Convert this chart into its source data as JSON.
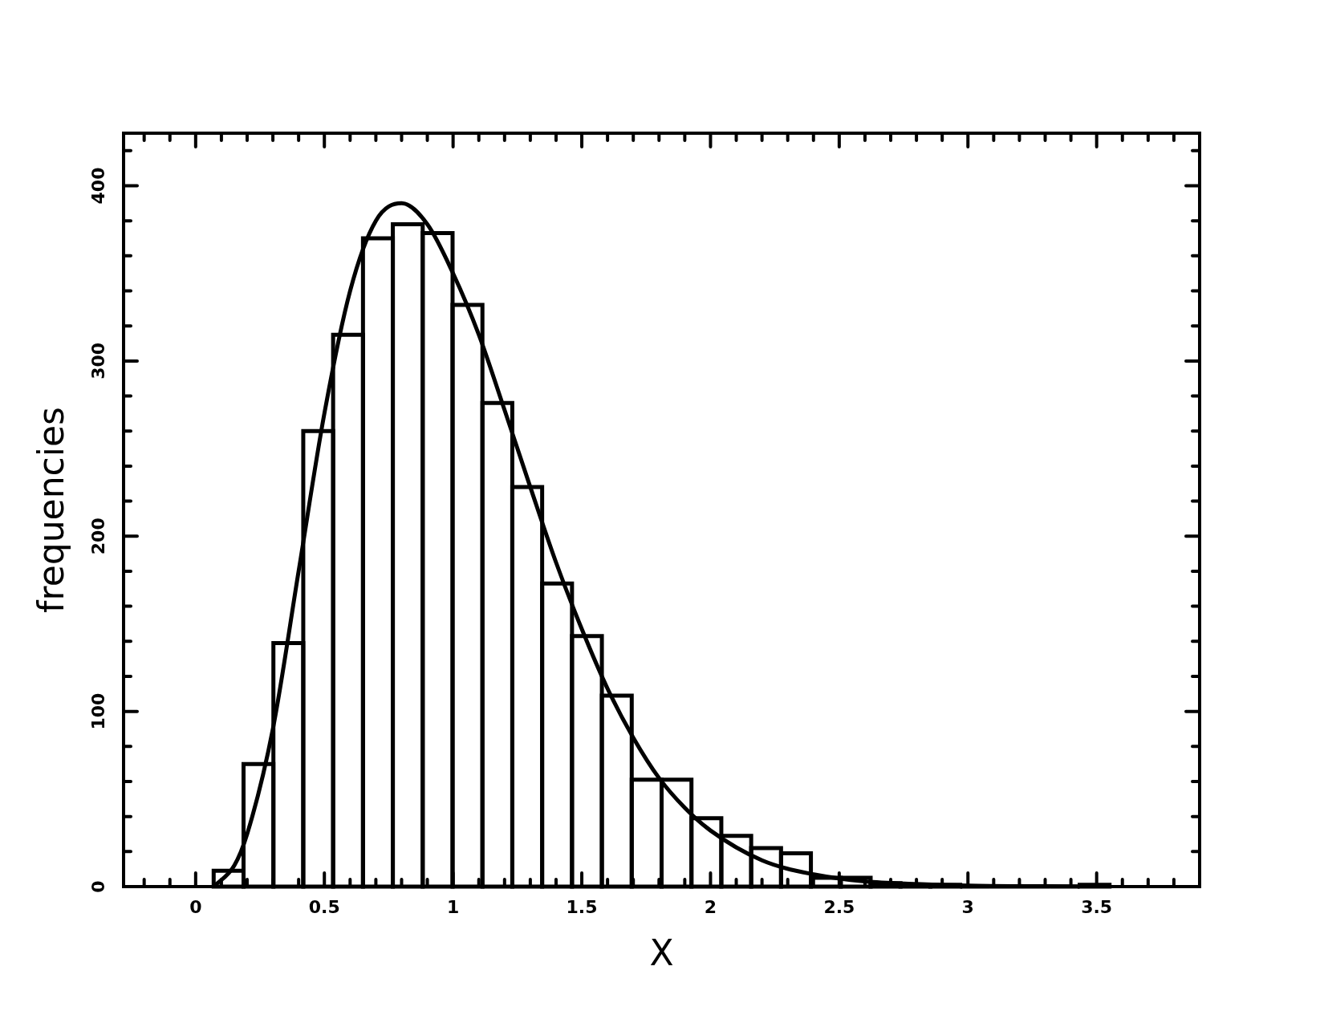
{
  "chart_data": {
    "type": "histogram",
    "xlabel": "X",
    "ylabel": "frequencies",
    "series": [
      {
        "type": "histogram",
        "color": "#000000",
        "bins": [
          0.07,
          0.186,
          0.302,
          0.418,
          0.534,
          0.65,
          0.766,
          0.882,
          0.998,
          1.114,
          1.23,
          1.346,
          1.462,
          1.578,
          1.694,
          1.81,
          1.926,
          2.042,
          2.158,
          2.274,
          2.39,
          2.506,
          2.622,
          2.738,
          2.854,
          2.97,
          3.086,
          3.202,
          3.318,
          3.434,
          3.55
        ],
        "values": [
          9,
          70,
          139,
          260,
          315,
          370,
          378,
          373,
          332,
          276,
          228,
          173,
          143,
          109,
          61,
          61,
          39,
          29,
          22,
          19,
          5,
          5,
          2,
          1,
          1,
          0,
          0,
          0,
          0,
          1
        ]
      },
      {
        "type": "line",
        "color": "#000000",
        "marker": "none",
        "line_style": "solid",
        "x": [
          0.07,
          0.15,
          0.2,
          0.3,
          0.4,
          0.5,
          0.6,
          0.7,
          0.8,
          0.9,
          1.0,
          1.1,
          1.2,
          1.3,
          1.4,
          1.5,
          1.6,
          1.7,
          1.8,
          1.9,
          2.0,
          2.2,
          2.4,
          2.6,
          2.8,
          3.0,
          3.3,
          3.55
        ],
        "values": [
          0,
          12,
          30,
          90,
          180,
          270,
          340,
          380,
          390,
          378,
          350,
          315,
          272,
          228,
          185,
          147,
          113,
          85,
          62,
          45,
          32,
          15,
          7,
          3,
          1.5,
          0.6,
          0.2,
          0
        ]
      }
    ],
    "xlim": [
      -0.28,
      3.9
    ],
    "ylim": [
      0,
      430
    ],
    "xticks": [
      {
        "value": -0.2,
        "label": null
      },
      {
        "value": -0.1,
        "label": null
      },
      0,
      {
        "value": 0.1,
        "label": null
      },
      {
        "value": 0.2,
        "label": null
      },
      {
        "value": 0.3,
        "label": null
      },
      {
        "value": 0.4,
        "label": null
      },
      0.5,
      {
        "value": 0.6,
        "label": null
      },
      {
        "value": 0.7,
        "label": null
      },
      {
        "value": 0.8,
        "label": null
      },
      {
        "value": 0.9,
        "label": null
      },
      1,
      {
        "value": 1.1,
        "label": null
      },
      {
        "value": 1.2,
        "label": null
      },
      {
        "value": 1.3,
        "label": null
      },
      {
        "value": 1.4,
        "label": null
      },
      1.5,
      {
        "value": 1.6,
        "label": null
      },
      {
        "value": 1.7,
        "label": null
      },
      {
        "value": 1.8,
        "label": null
      },
      {
        "value": 1.9,
        "label": null
      },
      2,
      {
        "value": 2.1,
        "label": null
      },
      {
        "value": 2.2,
        "label": null
      },
      {
        "value": 2.3,
        "label": null
      },
      {
        "value": 2.4,
        "label": null
      },
      2.5,
      {
        "value": 2.6,
        "label": null
      },
      {
        "value": 2.7,
        "label": null
      },
      {
        "value": 2.8,
        "label": null
      },
      {
        "value": 2.9,
        "label": null
      },
      3,
      {
        "value": 3.1,
        "label": null
      },
      {
        "value": 3.2,
        "label": null
      },
      {
        "value": 3.3,
        "label": null
      },
      {
        "value": 3.4,
        "label": null
      },
      3.5,
      {
        "value": 3.6,
        "label": null
      },
      {
        "value": 3.7,
        "label": null
      },
      {
        "value": 3.8,
        "label": null
      }
    ],
    "yticks": [
      0,
      {
        "value": 20,
        "label": null
      },
      {
        "value": 40,
        "label": null
      },
      {
        "value": 60,
        "label": null
      },
      {
        "value": 80,
        "label": null
      },
      100,
      {
        "value": 120,
        "label": null
      },
      {
        "value": 140,
        "label": null
      },
      {
        "value": 160,
        "label": null
      },
      {
        "value": 180,
        "label": null
      },
      200,
      {
        "value": 220,
        "label": null
      },
      {
        "value": 240,
        "label": null
      },
      {
        "value": 260,
        "label": null
      },
      {
        "value": 280,
        "label": null
      },
      300,
      {
        "value": 320,
        "label": null
      },
      {
        "value": 340,
        "label": null
      },
      {
        "value": 360,
        "label": null
      },
      {
        "value": 380,
        "label": null
      },
      400,
      {
        "value": 420,
        "label": null
      }
    ],
    "grid": false,
    "legend": false
  }
}
